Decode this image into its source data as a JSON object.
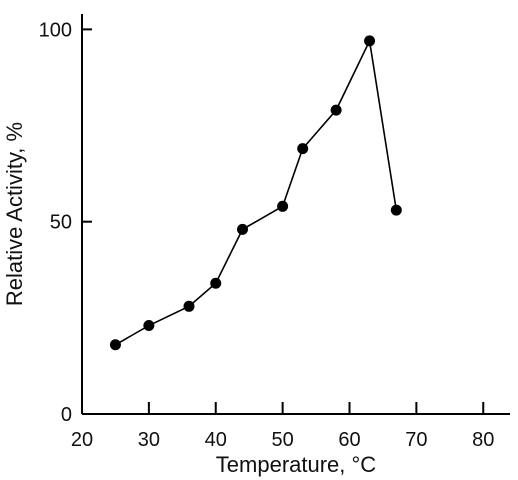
{
  "chart_data": {
    "type": "line",
    "title": "",
    "xlabel": "Temperature, °C",
    "ylabel": "Relative Activity, %",
    "xlim": [
      20,
      84
    ],
    "ylim": [
      0,
      104
    ],
    "x_ticks": [
      20,
      30,
      40,
      50,
      60,
      70,
      80
    ],
    "y_ticks": [
      0,
      50,
      100
    ],
    "grid": false,
    "legend": "none",
    "series": [
      {
        "x": [
          25,
          30,
          36,
          40,
          44,
          50,
          53,
          58,
          63,
          67
        ],
        "values": [
          18,
          23,
          28,
          34,
          48,
          54,
          69,
          79,
          97,
          53
        ]
      }
    ],
    "colors": {
      "line": "#000000",
      "marker": "#000000"
    }
  }
}
